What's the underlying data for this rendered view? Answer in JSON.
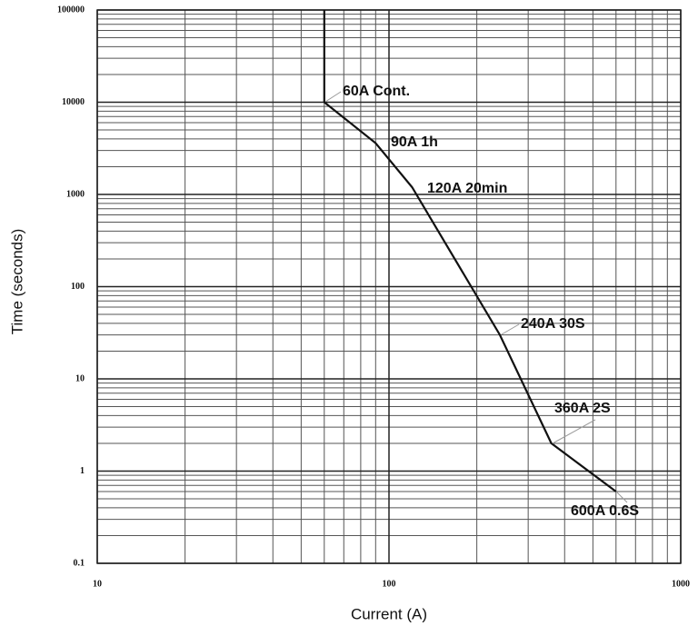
{
  "chart_data": {
    "type": "line",
    "xlabel": "Current (A)",
    "ylabel": "Time (seconds)",
    "x": [
      60,
      60,
      90,
      120,
      240,
      360,
      600
    ],
    "series": [
      {
        "color": "#111111",
        "values": [
          100000,
          10000,
          3600,
          1200,
          30,
          2,
          0.6
        ]
      }
    ],
    "xscale": "log",
    "yscale": "log",
    "xlim": [
      10,
      1000
    ],
    "ylim": [
      0.1,
      100000
    ],
    "xticks": [
      10,
      100,
      1000
    ],
    "yticks": [
      0.1,
      1,
      10,
      100,
      1000,
      10000,
      100000
    ],
    "grid": true,
    "annotations": [
      "60A Cont.",
      "90A 1h",
      "120A 20min",
      "240A 30S",
      "360A 2S",
      "600A 0.6S"
    ]
  }
}
